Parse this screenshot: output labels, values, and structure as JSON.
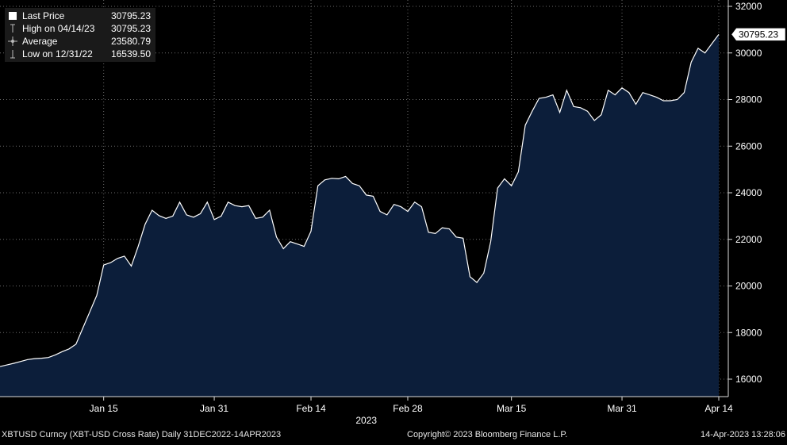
{
  "legend": {
    "rows": [
      {
        "label": "Last Price",
        "value": "30795.23",
        "symbol": "filled-square-icon"
      },
      {
        "label": "High on 04/14/23",
        "value": "30795.23",
        "symbol": "high-marker-icon"
      },
      {
        "label": "Average",
        "value": "23580.79",
        "symbol": "average-marker-icon"
      },
      {
        "label": "Low on 12/31/22",
        "value": "16539.50",
        "symbol": "low-marker-icon"
      }
    ]
  },
  "last_price_tag": "30795.23",
  "footer": {
    "left": "XBTUSD Curncy (XBT-USD Cross Rate)  Daily 31DEC2022-14APR2023",
    "center": "Copyright© 2023 Bloomberg Finance L.P.",
    "right": "14-Apr-2023 13:28:06"
  },
  "colors": {
    "background": "#000000",
    "area_fill": "#0c1e3a",
    "line": "#ffffff",
    "grid": "#6a6a6a"
  },
  "chart_data": {
    "type": "area",
    "x_year_label": "2023",
    "x_ticks": [
      "Jan 15",
      "Jan 31",
      "Feb 14",
      "Feb 28",
      "Mar 15",
      "Mar 31",
      "Apr 14"
    ],
    "ylim": [
      15000,
      32000
    ],
    "y_ticks": [
      "16000",
      "18000",
      "20000",
      "22000",
      "24000",
      "26000",
      "28000",
      "30000",
      "32000"
    ],
    "grid": true,
    "y_axis_side": "right",
    "series": [
      {
        "dates": [
          "2022-12-31",
          "2023-01-01",
          "2023-01-02",
          "2023-01-03",
          "2023-01-04",
          "2023-01-05",
          "2023-01-06",
          "2023-01-07",
          "2023-01-08",
          "2023-01-09",
          "2023-01-10",
          "2023-01-11",
          "2023-01-12",
          "2023-01-13",
          "2023-01-14",
          "2023-01-15",
          "2023-01-16",
          "2023-01-17",
          "2023-01-18",
          "2023-01-19",
          "2023-01-20",
          "2023-01-21",
          "2023-01-22",
          "2023-01-23",
          "2023-01-24",
          "2023-01-25",
          "2023-01-26",
          "2023-01-27",
          "2023-01-28",
          "2023-01-29",
          "2023-01-30",
          "2023-01-31",
          "2023-02-01",
          "2023-02-02",
          "2023-02-03",
          "2023-02-04",
          "2023-02-05",
          "2023-02-06",
          "2023-02-07",
          "2023-02-08",
          "2023-02-09",
          "2023-02-10",
          "2023-02-11",
          "2023-02-12",
          "2023-02-13",
          "2023-02-14",
          "2023-02-15",
          "2023-02-16",
          "2023-02-17",
          "2023-02-18",
          "2023-02-19",
          "2023-02-20",
          "2023-02-21",
          "2023-02-22",
          "2023-02-23",
          "2023-02-24",
          "2023-02-25",
          "2023-02-26",
          "2023-02-27",
          "2023-02-28",
          "2023-03-01",
          "2023-03-02",
          "2023-03-03",
          "2023-03-04",
          "2023-03-05",
          "2023-03-06",
          "2023-03-07",
          "2023-03-08",
          "2023-03-09",
          "2023-03-10",
          "2023-03-11",
          "2023-03-12",
          "2023-03-13",
          "2023-03-14",
          "2023-03-15",
          "2023-03-16",
          "2023-03-17",
          "2023-03-18",
          "2023-03-19",
          "2023-03-20",
          "2023-03-21",
          "2023-03-22",
          "2023-03-23",
          "2023-03-24",
          "2023-03-25",
          "2023-03-26",
          "2023-03-27",
          "2023-03-28",
          "2023-03-29",
          "2023-03-30",
          "2023-03-31",
          "2023-04-01",
          "2023-04-02",
          "2023-04-03",
          "2023-04-04",
          "2023-04-05",
          "2023-04-06",
          "2023-04-07",
          "2023-04-08",
          "2023-04-09",
          "2023-04-10",
          "2023-04-11",
          "2023-04-12",
          "2023-04-13",
          "2023-04-14"
        ],
        "values": [
          16540,
          16610,
          16680,
          16760,
          16840,
          16880,
          16900,
          16930,
          17040,
          17180,
          17300,
          17500,
          18200,
          18900,
          19600,
          20900,
          21000,
          21180,
          21280,
          20850,
          21700,
          22650,
          23250,
          23020,
          22900,
          23000,
          23600,
          23050,
          22950,
          23100,
          23600,
          22850,
          23000,
          23600,
          23450,
          23400,
          23450,
          22900,
          22950,
          23250,
          22100,
          21600,
          21900,
          21800,
          21700,
          22350,
          24300,
          24550,
          24620,
          24600,
          24700,
          24400,
          24300,
          23900,
          23850,
          23200,
          23050,
          23500,
          23400,
          23200,
          23600,
          23400,
          22300,
          22250,
          22500,
          22450,
          22100,
          22050,
          20400,
          20150,
          20550,
          21900,
          24200,
          24600,
          24300,
          24900,
          26900,
          27500,
          28050,
          28100,
          28200,
          27450,
          28400,
          27700,
          27650,
          27500,
          27100,
          27350,
          28400,
          28200,
          28500,
          28300,
          27800,
          28300,
          28200,
          28100,
          27950,
          27950,
          28000,
          28300,
          29600,
          30200,
          30000,
          30400,
          30795
        ]
      }
    ]
  }
}
